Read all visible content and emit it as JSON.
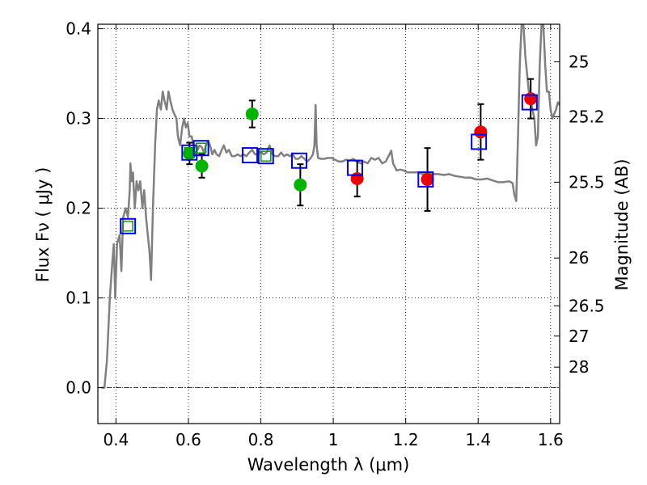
{
  "chart_data": {
    "type": "scatter",
    "xlabel": "Wavelength  λ (μm)",
    "ylabel": "Flux  Fν  ( μJy )",
    "y2label": "Magnitude (AB)",
    "xlim": [
      0.35,
      1.625
    ],
    "ylim": [
      -0.04,
      0.405
    ],
    "x_ticks": [
      0.4,
      0.6,
      0.8,
      1.0,
      1.2,
      1.4,
      1.6
    ],
    "x_tick_labels": [
      "0.4",
      "0.6",
      "0.8",
      "1",
      "1.2",
      "1.4",
      "1.6"
    ],
    "y_ticks": [
      0.0,
      0.1,
      0.2,
      0.3,
      0.4
    ],
    "y_tick_labels": [
      "0.0",
      "0.1",
      "0.2",
      "0.3",
      "0.4"
    ],
    "mag_ticks": [
      {
        "label": "25",
        "flux": 0.3631
      },
      {
        "label": "25.2",
        "flux": 0.302
      },
      {
        "label": "25.5",
        "flux": 0.229
      },
      {
        "label": "26",
        "flux": 0.1445
      },
      {
        "label": "26.5",
        "flux": 0.0912
      },
      {
        "label": "27",
        "flux": 0.0575
      },
      {
        "label": "28",
        "flux": 0.0229
      }
    ],
    "grid": true,
    "spectrum_color": "#808080",
    "spectrum": [
      [
        0.36,
        0.0
      ],
      [
        0.368,
        0.0
      ],
      [
        0.375,
        0.03
      ],
      [
        0.383,
        0.1
      ],
      [
        0.39,
        0.14
      ],
      [
        0.394,
        0.16
      ],
      [
        0.398,
        0.1
      ],
      [
        0.403,
        0.16
      ],
      [
        0.41,
        0.17
      ],
      [
        0.415,
        0.13
      ],
      [
        0.42,
        0.19
      ],
      [
        0.427,
        0.2
      ],
      [
        0.433,
        0.19
      ],
      [
        0.438,
        0.22
      ],
      [
        0.44,
        0.25
      ],
      [
        0.443,
        0.23
      ],
      [
        0.447,
        0.24
      ],
      [
        0.452,
        0.2
      ],
      [
        0.457,
        0.23
      ],
      [
        0.462,
        0.22
      ],
      [
        0.467,
        0.23
      ],
      [
        0.473,
        0.2
      ],
      [
        0.478,
        0.22
      ],
      [
        0.483,
        0.19
      ],
      [
        0.488,
        0.17
      ],
      [
        0.493,
        0.15
      ],
      [
        0.497,
        0.12
      ],
      [
        0.502,
        0.2
      ],
      [
        0.508,
        0.27
      ],
      [
        0.513,
        0.31
      ],
      [
        0.518,
        0.32
      ],
      [
        0.524,
        0.31
      ],
      [
        0.529,
        0.33
      ],
      [
        0.534,
        0.32
      ],
      [
        0.54,
        0.31
      ],
      [
        0.545,
        0.33
      ],
      [
        0.55,
        0.32
      ],
      [
        0.556,
        0.31
      ],
      [
        0.561,
        0.305
      ],
      [
        0.567,
        0.3
      ],
      [
        0.571,
        0.28
      ],
      [
        0.577,
        0.27
      ],
      [
        0.583,
        0.29
      ],
      [
        0.588,
        0.3
      ],
      [
        0.593,
        0.29
      ],
      [
        0.598,
        0.295
      ],
      [
        0.603,
        0.28
      ],
      [
        0.609,
        0.28
      ],
      [
        0.614,
        0.27
      ],
      [
        0.62,
        0.268
      ],
      [
        0.625,
        0.265
      ],
      [
        0.631,
        0.27
      ],
      [
        0.637,
        0.268
      ],
      [
        0.643,
        0.262
      ],
      [
        0.648,
        0.27
      ],
      [
        0.654,
        0.275
      ],
      [
        0.66,
        0.27
      ],
      [
        0.666,
        0.26
      ],
      [
        0.672,
        0.265
      ],
      [
        0.678,
        0.26
      ],
      [
        0.685,
        0.258
      ],
      [
        0.692,
        0.265
      ],
      [
        0.698,
        0.27
      ],
      [
        0.705,
        0.262
      ],
      [
        0.712,
        0.265
      ],
      [
        0.72,
        0.258
      ],
      [
        0.728,
        0.258
      ],
      [
        0.736,
        0.26
      ],
      [
        0.744,
        0.258
      ],
      [
        0.752,
        0.26
      ],
      [
        0.76,
        0.258
      ],
      [
        0.768,
        0.262
      ],
      [
        0.776,
        0.265
      ],
      [
        0.784,
        0.26
      ],
      [
        0.792,
        0.26
      ],
      [
        0.8,
        0.263
      ],
      [
        0.808,
        0.26
      ],
      [
        0.816,
        0.262
      ],
      [
        0.824,
        0.27
      ],
      [
        0.832,
        0.26
      ],
      [
        0.84,
        0.258
      ],
      [
        0.848,
        0.258
      ],
      [
        0.856,
        0.262
      ],
      [
        0.864,
        0.258
      ],
      [
        0.872,
        0.26
      ],
      [
        0.88,
        0.258
      ],
      [
        0.888,
        0.26
      ],
      [
        0.896,
        0.255
      ],
      [
        0.904,
        0.255
      ],
      [
        0.912,
        0.258
      ],
      [
        0.92,
        0.255
      ],
      [
        0.928,
        0.252
      ],
      [
        0.936,
        0.255
      ],
      [
        0.944,
        0.26
      ],
      [
        0.948,
        0.27
      ],
      [
        0.951,
        0.315
      ],
      [
        0.954,
        0.27
      ],
      [
        0.958,
        0.256
      ],
      [
        0.966,
        0.255
      ],
      [
        0.975,
        0.255
      ],
      [
        0.985,
        0.256
      ],
      [
        0.995,
        0.256
      ],
      [
        1.005,
        0.254
      ],
      [
        1.015,
        0.252
      ],
      [
        1.025,
        0.252
      ],
      [
        1.035,
        0.254
      ],
      [
        1.045,
        0.253
      ],
      [
        1.055,
        0.255
      ],
      [
        1.065,
        0.252
      ],
      [
        1.075,
        0.25
      ],
      [
        1.085,
        0.252
      ],
      [
        1.095,
        0.25
      ],
      [
        1.105,
        0.256
      ],
      [
        1.115,
        0.254
      ],
      [
        1.125,
        0.256
      ],
      [
        1.135,
        0.25
      ],
      [
        1.145,
        0.252
      ],
      [
        1.155,
        0.26
      ],
      [
        1.16,
        0.264
      ],
      [
        1.165,
        0.25
      ],
      [
        1.175,
        0.242
      ],
      [
        1.185,
        0.243
      ],
      [
        1.195,
        0.242
      ],
      [
        1.205,
        0.24
      ],
      [
        1.215,
        0.24
      ],
      [
        1.225,
        0.24
      ],
      [
        1.235,
        0.24
      ],
      [
        1.245,
        0.238
      ],
      [
        1.26,
        0.238
      ],
      [
        1.275,
        0.238
      ],
      [
        1.29,
        0.238
      ],
      [
        1.305,
        0.237
      ],
      [
        1.32,
        0.238
      ],
      [
        1.335,
        0.236
      ],
      [
        1.35,
        0.235
      ],
      [
        1.365,
        0.234
      ],
      [
        1.38,
        0.234
      ],
      [
        1.395,
        0.232
      ],
      [
        1.41,
        0.232
      ],
      [
        1.425,
        0.233
      ],
      [
        1.44,
        0.231
      ],
      [
        1.455,
        0.229
      ],
      [
        1.47,
        0.229
      ],
      [
        1.485,
        0.23
      ],
      [
        1.495,
        0.228
      ],
      [
        1.5,
        0.215
      ],
      [
        1.505,
        0.208
      ],
      [
        1.51,
        0.28
      ],
      [
        1.515,
        0.36
      ],
      [
        1.52,
        0.405
      ],
      [
        1.525,
        0.405
      ],
      [
        1.53,
        0.37
      ],
      [
        1.535,
        0.35
      ],
      [
        1.54,
        0.33
      ],
      [
        1.545,
        0.32
      ],
      [
        1.55,
        0.31
      ],
      [
        1.555,
        0.3
      ],
      [
        1.56,
        0.27
      ],
      [
        1.565,
        0.28
      ],
      [
        1.57,
        0.36
      ],
      [
        1.575,
        0.405
      ],
      [
        1.58,
        0.405
      ],
      [
        1.585,
        0.36
      ],
      [
        1.59,
        0.33
      ],
      [
        1.595,
        0.33
      ],
      [
        1.6,
        0.31
      ],
      [
        1.605,
        0.3
      ],
      [
        1.61,
        0.305
      ],
      [
        1.615,
        0.31
      ],
      [
        1.62,
        0.318
      ],
      [
        1.625,
        0.315
      ]
    ],
    "model_points": [
      {
        "x": 0.433,
        "y": 0.18,
        "inner_color": "#00a000"
      },
      {
        "x": 0.603,
        "y": 0.262,
        "inner_color": "#00a000"
      },
      {
        "x": 0.635,
        "y": 0.267,
        "inner_color": "#00a000"
      },
      {
        "x": 0.77,
        "y": 0.259,
        "inner_color": null
      },
      {
        "x": 0.814,
        "y": 0.258,
        "inner_color": "#00a000"
      },
      {
        "x": 0.906,
        "y": 0.253,
        "inner_color": null
      },
      {
        "x": 1.06,
        "y": 0.245,
        "inner_color": null
      },
      {
        "x": 1.255,
        "y": 0.232,
        "inner_color": null
      },
      {
        "x": 1.402,
        "y": 0.274,
        "inner_color": null
      },
      {
        "x": 1.542,
        "y": 0.318,
        "inner_color": null
      }
    ],
    "observed_points": [
      {
        "x": 0.603,
        "y": 0.261,
        "err": 0.012,
        "color": "#00b400"
      },
      {
        "x": 0.637,
        "y": 0.247,
        "err": 0.013,
        "color": "#00b400"
      },
      {
        "x": 0.776,
        "y": 0.305,
        "err": 0.015,
        "color": "#00b400"
      },
      {
        "x": 0.909,
        "y": 0.226,
        "err": 0.023,
        "color": "#00b400"
      },
      {
        "x": 1.066,
        "y": 0.233,
        "err": 0.02,
        "color": "#ee0000"
      },
      {
        "x": 1.26,
        "y": 0.232,
        "err": 0.035,
        "color": "#ee0000"
      },
      {
        "x": 1.407,
        "y": 0.285,
        "err": 0.031,
        "color": "#ee0000"
      },
      {
        "x": 1.545,
        "y": 0.322,
        "err": 0.022,
        "color": "#ee0000"
      }
    ],
    "model_box_color": "#0000ee",
    "errorbar_color": "#000000"
  }
}
